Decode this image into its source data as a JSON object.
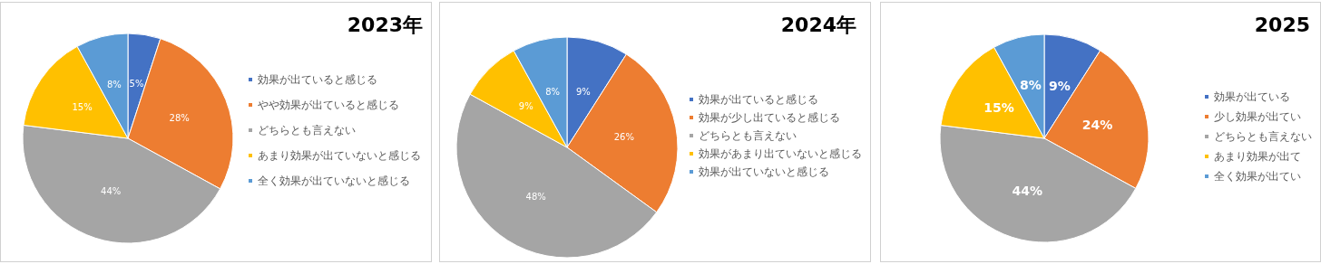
{
  "chart_data": [
    {
      "type": "pie",
      "title": "2023年",
      "categories": [
        "効果が出ていると感じる",
        "やや効果が出ていると感じる",
        "どちらとも言えない",
        "あまり効果が出ていないと感じる",
        "全く効果が出ていないと感じる"
      ],
      "values": [
        5,
        28,
        44,
        15,
        8
      ],
      "value_labels": [
        "5%",
        "28%",
        "44%",
        "15%",
        "8%"
      ],
      "colors": [
        "#4472c4",
        "#ed7d31",
        "#a5a5a5",
        "#ffc000",
        "#5b9bd5"
      ],
      "legend": "right"
    },
    {
      "type": "pie",
      "title": "2024年",
      "categories": [
        "効果が出ていると感じる",
        "効果が少し出ていると感じる",
        "どちらとも言えない",
        "効果があまり出ていないと感じる",
        "効果が出ていないと感じる"
      ],
      "values": [
        9,
        26,
        48,
        9,
        8
      ],
      "value_labels": [
        "9%",
        "26%",
        "48%",
        "9%",
        "8%"
      ],
      "colors": [
        "#4472c4",
        "#ed7d31",
        "#a5a5a5",
        "#ffc000",
        "#5b9bd5"
      ],
      "legend": "right"
    },
    {
      "type": "pie",
      "title": "2025",
      "categories": [
        "効果が出ている",
        "少し効果が出てい",
        "どちらとも言えない",
        "あまり効果が出て",
        "全く効果が出てい"
      ],
      "values": [
        9,
        24,
        44,
        15,
        8
      ],
      "value_labels": [
        "9%",
        "24%",
        "44%",
        "15%",
        "8%"
      ],
      "colors": [
        "#4472c4",
        "#ed7d31",
        "#a5a5a5",
        "#ffc000",
        "#5b9bd5"
      ],
      "legend": "right"
    }
  ]
}
